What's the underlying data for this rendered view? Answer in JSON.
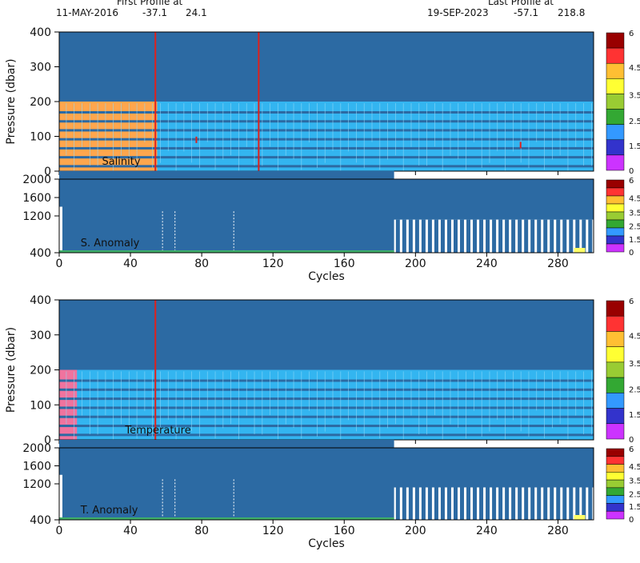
{
  "header": {
    "first_title": "First Profile at",
    "first_date": "11-MAY-2016",
    "first_lat": "-37.1",
    "first_lon": "24.1",
    "last_title": "Last Profile at",
    "last_date": "19-SEP-2023",
    "last_lat": "-57.1",
    "last_lon": "218.8"
  },
  "colors": {
    "background_fill": "#2c6aa3",
    "level_band": "#33b5f0",
    "salinity_left_band": "#ffa64d",
    "temperature_left_band": "#f0739e",
    "qc_red": "#e0201b"
  },
  "chart_data": [
    {
      "id": "salinity",
      "type": "heatmap",
      "label": "Salinity",
      "ylabel": "Pressure (dbar)",
      "xlabel": "",
      "ylim": [
        400,
        0
      ],
      "y_ticks": [
        "0",
        "100",
        "200",
        "300",
        "400"
      ],
      "xlim": [
        0,
        300
      ],
      "x_ticks": [],
      "left_band_until_cycle": 55,
      "band_from_pressure": 200,
      "red_lines": [
        54,
        112
      ],
      "red_marks": [
        [
          77,
          90
        ],
        [
          259,
          75
        ]
      ],
      "colorbar": [
        "6",
        "4.5",
        "3.5",
        "2.5",
        "1.5",
        "0"
      ]
    },
    {
      "id": "s-anomaly",
      "type": "heatmap",
      "label": "S. Anomaly",
      "ylabel": "",
      "xlabel": "Cycles",
      "ylim": [
        2000,
        400
      ],
      "y_ticks": [
        "400",
        "1200",
        "1600",
        "2000"
      ],
      "xlim": [
        0,
        300
      ],
      "x_ticks": [
        "0",
        "40",
        "80",
        "120",
        "160",
        "200",
        "240",
        "280"
      ],
      "deep_from_cycle": 188,
      "deep_pressure": 1120,
      "dashed_lines": [
        58,
        65,
        98
      ],
      "colorbar": [
        "6",
        "4.5",
        "3.5",
        "2.5",
        "1.5",
        "0"
      ]
    },
    {
      "id": "temperature",
      "type": "heatmap",
      "label": "Temperature",
      "ylabel": "Pressure (dbar)",
      "xlabel": "",
      "ylim": [
        400,
        0
      ],
      "y_ticks": [
        "0",
        "100",
        "200",
        "300",
        "400"
      ],
      "xlim": [
        0,
        300
      ],
      "x_ticks": [],
      "left_band_until_cycle": 10,
      "band_from_pressure": 200,
      "red_lines": [
        54
      ],
      "red_marks": [],
      "colorbar": [
        "6",
        "4.5",
        "3.5",
        "2.5",
        "1.5",
        "0"
      ]
    },
    {
      "id": "t-anomaly",
      "type": "heatmap",
      "label": "T. Anomaly",
      "ylabel": "",
      "xlabel": "Cycles",
      "ylim": [
        2000,
        400
      ],
      "y_ticks": [
        "400",
        "1200",
        "1600",
        "2000"
      ],
      "xlim": [
        0,
        300
      ],
      "x_ticks": [
        "0",
        "40",
        "80",
        "120",
        "160",
        "200",
        "240",
        "280"
      ],
      "deep_from_cycle": 188,
      "deep_pressure": 1120,
      "dashed_lines": [
        58,
        65,
        98
      ],
      "colorbar": [
        "6",
        "4.5",
        "3.5",
        "2.5",
        "1.5",
        "0"
      ]
    }
  ]
}
